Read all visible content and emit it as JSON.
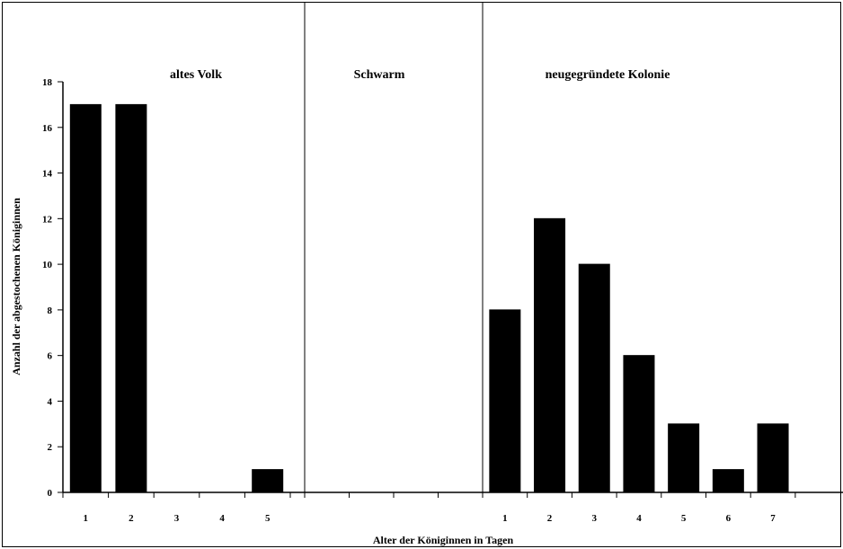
{
  "chart_data": {
    "type": "bar",
    "ylabel": "Anzahl der abgestochenen Königinnen",
    "xlabel": "Alter der Königinnen in Tagen",
    "ylim": [
      0,
      18
    ],
    "yticks": [
      0,
      2,
      4,
      6,
      8,
      10,
      12,
      14,
      16,
      18
    ],
    "grid": false,
    "legend": "none",
    "bar_color": "#000000",
    "panels": [
      {
        "title": "altes Volk",
        "categories": [
          "1",
          "2",
          "3",
          "4",
          "5"
        ],
        "values": [
          17,
          17,
          0,
          0,
          1
        ]
      },
      {
        "title": "Schwarm",
        "categories": [
          "",
          "",
          "",
          ""
        ],
        "values": [
          0,
          0,
          0,
          0
        ]
      },
      {
        "title": "neugegründete Kolonie",
        "categories": [
          "1",
          "2",
          "3",
          "4",
          "5",
          "6",
          "7"
        ],
        "values": [
          8,
          12,
          10,
          6,
          3,
          1,
          3
        ]
      }
    ]
  }
}
